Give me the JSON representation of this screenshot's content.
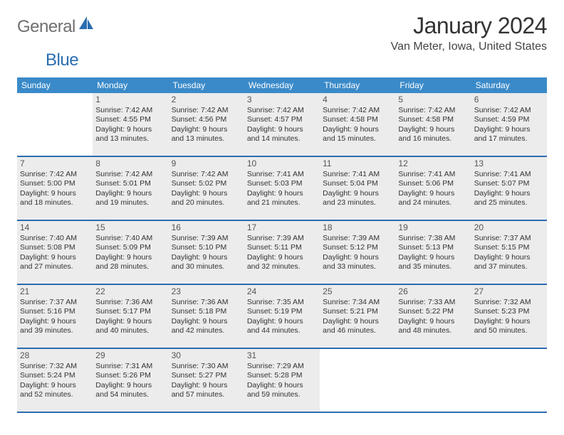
{
  "logo": {
    "text1": "General",
    "text2": "Blue"
  },
  "title": "January 2024",
  "location": "Van Meter, Iowa, United States",
  "colors": {
    "header_bg": "#3a8ac9",
    "header_text": "#ffffff",
    "cell_bg": "#ececec",
    "border": "#2a6db0",
    "logo_gray": "#6f6f6f",
    "logo_blue": "#2a6db0"
  },
  "dow": [
    "Sunday",
    "Monday",
    "Tuesday",
    "Wednesday",
    "Thursday",
    "Friday",
    "Saturday"
  ],
  "weeks": [
    [
      null,
      {
        "n": "1",
        "sr": "Sunrise: 7:42 AM",
        "ss": "Sunset: 4:55 PM",
        "d1": "Daylight: 9 hours",
        "d2": "and 13 minutes."
      },
      {
        "n": "2",
        "sr": "Sunrise: 7:42 AM",
        "ss": "Sunset: 4:56 PM",
        "d1": "Daylight: 9 hours",
        "d2": "and 13 minutes."
      },
      {
        "n": "3",
        "sr": "Sunrise: 7:42 AM",
        "ss": "Sunset: 4:57 PM",
        "d1": "Daylight: 9 hours",
        "d2": "and 14 minutes."
      },
      {
        "n": "4",
        "sr": "Sunrise: 7:42 AM",
        "ss": "Sunset: 4:58 PM",
        "d1": "Daylight: 9 hours",
        "d2": "and 15 minutes."
      },
      {
        "n": "5",
        "sr": "Sunrise: 7:42 AM",
        "ss": "Sunset: 4:58 PM",
        "d1": "Daylight: 9 hours",
        "d2": "and 16 minutes."
      },
      {
        "n": "6",
        "sr": "Sunrise: 7:42 AM",
        "ss": "Sunset: 4:59 PM",
        "d1": "Daylight: 9 hours",
        "d2": "and 17 minutes."
      }
    ],
    [
      {
        "n": "7",
        "sr": "Sunrise: 7:42 AM",
        "ss": "Sunset: 5:00 PM",
        "d1": "Daylight: 9 hours",
        "d2": "and 18 minutes."
      },
      {
        "n": "8",
        "sr": "Sunrise: 7:42 AM",
        "ss": "Sunset: 5:01 PM",
        "d1": "Daylight: 9 hours",
        "d2": "and 19 minutes."
      },
      {
        "n": "9",
        "sr": "Sunrise: 7:42 AM",
        "ss": "Sunset: 5:02 PM",
        "d1": "Daylight: 9 hours",
        "d2": "and 20 minutes."
      },
      {
        "n": "10",
        "sr": "Sunrise: 7:41 AM",
        "ss": "Sunset: 5:03 PM",
        "d1": "Daylight: 9 hours",
        "d2": "and 21 minutes."
      },
      {
        "n": "11",
        "sr": "Sunrise: 7:41 AM",
        "ss": "Sunset: 5:04 PM",
        "d1": "Daylight: 9 hours",
        "d2": "and 23 minutes."
      },
      {
        "n": "12",
        "sr": "Sunrise: 7:41 AM",
        "ss": "Sunset: 5:06 PM",
        "d1": "Daylight: 9 hours",
        "d2": "and 24 minutes."
      },
      {
        "n": "13",
        "sr": "Sunrise: 7:41 AM",
        "ss": "Sunset: 5:07 PM",
        "d1": "Daylight: 9 hours",
        "d2": "and 25 minutes."
      }
    ],
    [
      {
        "n": "14",
        "sr": "Sunrise: 7:40 AM",
        "ss": "Sunset: 5:08 PM",
        "d1": "Daylight: 9 hours",
        "d2": "and 27 minutes."
      },
      {
        "n": "15",
        "sr": "Sunrise: 7:40 AM",
        "ss": "Sunset: 5:09 PM",
        "d1": "Daylight: 9 hours",
        "d2": "and 28 minutes."
      },
      {
        "n": "16",
        "sr": "Sunrise: 7:39 AM",
        "ss": "Sunset: 5:10 PM",
        "d1": "Daylight: 9 hours",
        "d2": "and 30 minutes."
      },
      {
        "n": "17",
        "sr": "Sunrise: 7:39 AM",
        "ss": "Sunset: 5:11 PM",
        "d1": "Daylight: 9 hours",
        "d2": "and 32 minutes."
      },
      {
        "n": "18",
        "sr": "Sunrise: 7:39 AM",
        "ss": "Sunset: 5:12 PM",
        "d1": "Daylight: 9 hours",
        "d2": "and 33 minutes."
      },
      {
        "n": "19",
        "sr": "Sunrise: 7:38 AM",
        "ss": "Sunset: 5:13 PM",
        "d1": "Daylight: 9 hours",
        "d2": "and 35 minutes."
      },
      {
        "n": "20",
        "sr": "Sunrise: 7:37 AM",
        "ss": "Sunset: 5:15 PM",
        "d1": "Daylight: 9 hours",
        "d2": "and 37 minutes."
      }
    ],
    [
      {
        "n": "21",
        "sr": "Sunrise: 7:37 AM",
        "ss": "Sunset: 5:16 PM",
        "d1": "Daylight: 9 hours",
        "d2": "and 39 minutes."
      },
      {
        "n": "22",
        "sr": "Sunrise: 7:36 AM",
        "ss": "Sunset: 5:17 PM",
        "d1": "Daylight: 9 hours",
        "d2": "and 40 minutes."
      },
      {
        "n": "23",
        "sr": "Sunrise: 7:36 AM",
        "ss": "Sunset: 5:18 PM",
        "d1": "Daylight: 9 hours",
        "d2": "and 42 minutes."
      },
      {
        "n": "24",
        "sr": "Sunrise: 7:35 AM",
        "ss": "Sunset: 5:19 PM",
        "d1": "Daylight: 9 hours",
        "d2": "and 44 minutes."
      },
      {
        "n": "25",
        "sr": "Sunrise: 7:34 AM",
        "ss": "Sunset: 5:21 PM",
        "d1": "Daylight: 9 hours",
        "d2": "and 46 minutes."
      },
      {
        "n": "26",
        "sr": "Sunrise: 7:33 AM",
        "ss": "Sunset: 5:22 PM",
        "d1": "Daylight: 9 hours",
        "d2": "and 48 minutes."
      },
      {
        "n": "27",
        "sr": "Sunrise: 7:32 AM",
        "ss": "Sunset: 5:23 PM",
        "d1": "Daylight: 9 hours",
        "d2": "and 50 minutes."
      }
    ],
    [
      {
        "n": "28",
        "sr": "Sunrise: 7:32 AM",
        "ss": "Sunset: 5:24 PM",
        "d1": "Daylight: 9 hours",
        "d2": "and 52 minutes."
      },
      {
        "n": "29",
        "sr": "Sunrise: 7:31 AM",
        "ss": "Sunset: 5:26 PM",
        "d1": "Daylight: 9 hours",
        "d2": "and 54 minutes."
      },
      {
        "n": "30",
        "sr": "Sunrise: 7:30 AM",
        "ss": "Sunset: 5:27 PM",
        "d1": "Daylight: 9 hours",
        "d2": "and 57 minutes."
      },
      {
        "n": "31",
        "sr": "Sunrise: 7:29 AM",
        "ss": "Sunset: 5:28 PM",
        "d1": "Daylight: 9 hours",
        "d2": "and 59 minutes."
      },
      null,
      null,
      null
    ]
  ]
}
